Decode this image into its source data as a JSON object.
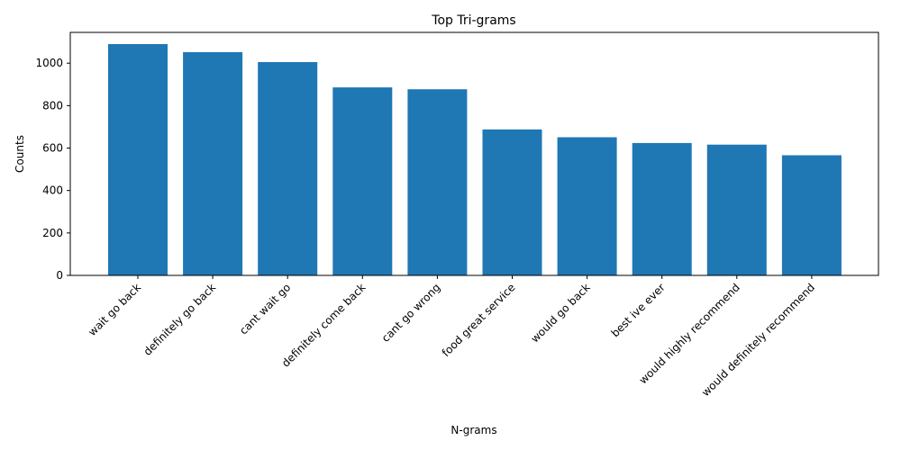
{
  "chart_data": {
    "type": "bar",
    "title": "Top Tri-grams",
    "xlabel": "N-grams",
    "ylabel": "Counts",
    "categories": [
      "wait go back",
      "definitely go back",
      "cant wait go",
      "definitely come back",
      "cant go wrong",
      "food great service",
      "would go back",
      "best ive ever",
      "would highly recommend",
      "would definitely recommend"
    ],
    "values": [
      1090,
      1052,
      1005,
      886,
      877,
      688,
      651,
      624,
      616,
      566
    ],
    "ylim": [
      0,
      1145
    ],
    "yticks": [
      0,
      200,
      400,
      600,
      800,
      1000
    ],
    "ytick_labels": [
      "0",
      "200",
      "400",
      "600",
      "800",
      "1000"
    ],
    "bar_color": "#1f77b4",
    "grid": false,
    "legend": "none"
  }
}
